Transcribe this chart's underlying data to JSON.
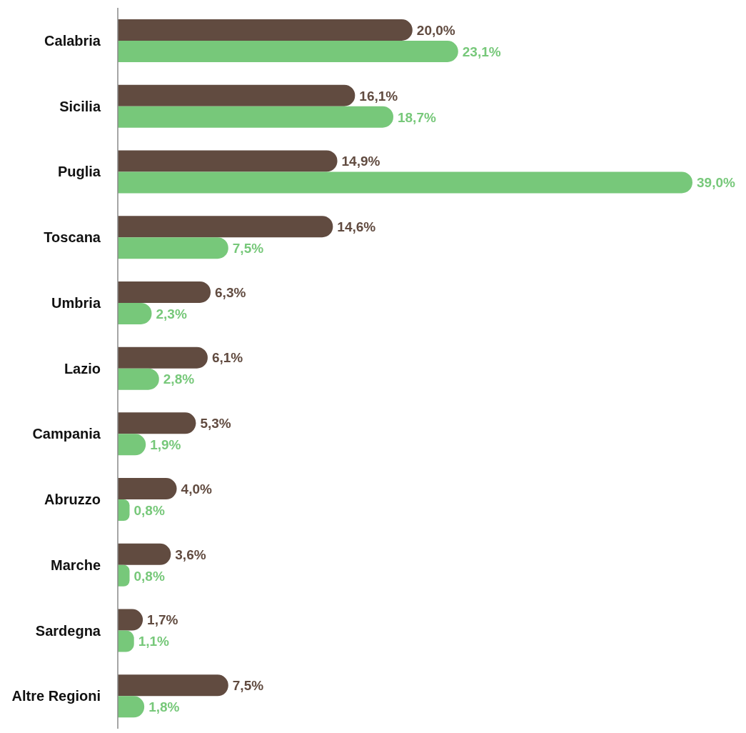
{
  "chart_data": {
    "type": "bar",
    "orientation": "horizontal",
    "categories": [
      "Calabria",
      "Sicilia",
      "Puglia",
      "Toscana",
      "Umbria",
      "Lazio",
      "Campania",
      "Abruzzo",
      "Marche",
      "Sardegna",
      "Altre Regioni"
    ],
    "series": [
      {
        "color": "#614b40",
        "values": [
          20.0,
          16.1,
          14.9,
          14.6,
          6.3,
          6.1,
          5.3,
          4.0,
          3.6,
          1.7,
          7.5
        ],
        "value_labels": [
          "20,0%",
          "16,1%",
          "14,9%",
          "14,6%",
          "6,3%",
          "6,1%",
          "5,3%",
          "4,0%",
          "3,6%",
          "1,7%",
          "7,5%"
        ]
      },
      {
        "color": "#77c87a",
        "values": [
          23.1,
          18.7,
          39.0,
          7.5,
          2.3,
          2.8,
          1.9,
          0.8,
          0.8,
          1.1,
          1.8
        ],
        "value_labels": [
          "23,1%",
          "18,7%",
          "39,0%",
          "7,5%",
          "2,3%",
          "2,8%",
          "1,9%",
          "0,8%",
          "0,8%",
          "1,1%",
          "1,8%"
        ]
      }
    ]
  }
}
